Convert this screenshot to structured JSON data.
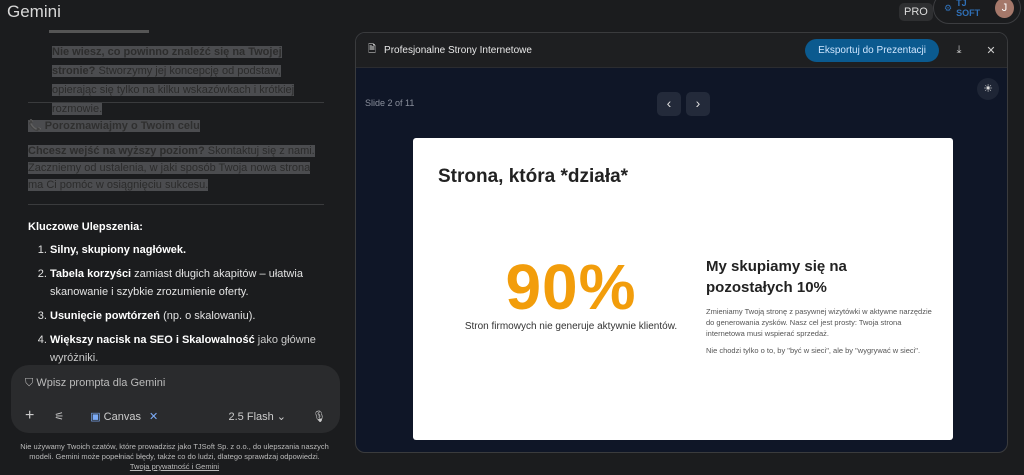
{
  "app": {
    "title": "Gemini",
    "plan_badge": "PRO",
    "account_brand": "TJ SOFT",
    "avatar_initial": "J"
  },
  "chat": {
    "block1": {
      "bold": "Nie wiesz, co powinno znaleźć się na Twojej stronie?",
      "text": "Stworzymy jej koncepcję od podstaw, opierając się tylko na kilku wskazówkach i krótkiej rozmowie."
    },
    "heading2": {
      "icon": "📞",
      "text": "Porozmawiajmy o Twoim celu"
    },
    "block2": {
      "bold": "Chcesz wejść na wyższy poziom?",
      "text": "Skontaktuj się z nami. Zaczniemy od ustalenia, w jaki sposób Twoja nowa strona ma Ci pomóc w osiągnięciu sukcesu."
    },
    "key_heading": "Kluczowe Ulepszenia:",
    "list": [
      {
        "bold": "Silny, skupiony nagłówek.",
        "text": ""
      },
      {
        "bold": "Tabela korzyści",
        "text": " zamiast długich akapitów – ułatwia skanowanie i szybkie zrozumienie oferty."
      },
      {
        "bold": "Usunięcie powtórzeń",
        "text": " (np. o skalowaniu)."
      },
      {
        "bold": "Większy nacisk na SEO i Skalowalność",
        "text": " jako główne wyróżniki."
      }
    ]
  },
  "input": {
    "placeholder": "Wpisz prompta dla Gemini",
    "canvas_label": "Canvas",
    "model": "2.5 Flash"
  },
  "disclaimer": {
    "text": "Nie używamy Twoich czatów, które prowadzisz jako TJSoft Sp. z o.o., do ulepszania naszych modeli. Gemini może popełniać błędy, także co do ludzi, dlatego sprawdzaj odpowiedzi.",
    "link": "Twoja prywatność i Gemini"
  },
  "canvas": {
    "title": "Profesjonalne Strony Internetowe",
    "export_label": "Eksportuj do Prezentacji",
    "slide_counter": "Slide 2 of 11",
    "slide": {
      "title": "Strona, która *działa*",
      "stat": "90%",
      "stat_caption": "Stron firmowych nie generuje aktywnie klientów.",
      "right_title": "My skupiamy się na pozostałych 10%",
      "p1": "Zmieniamy Twoją stronę z pasywnej wizytówki w aktywne narzędzie do generowania zysków. Nasz cel jest prosty: Twoja strona internetowa musi wspierać sprzedaż.",
      "p2": "Nie chodzi tylko o to, by \"być w sieci\", ale by \"wygrywać w sieci\"."
    }
  },
  "colors": {
    "accent_orange": "#f29d0b",
    "export_button": "#0b5a8f",
    "canvas_chip": "#7cacf8"
  }
}
